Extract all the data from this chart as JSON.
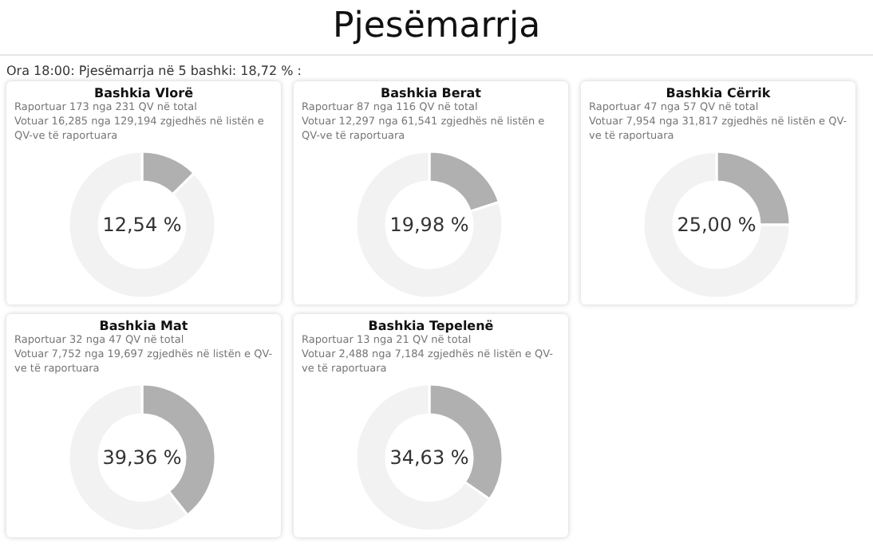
{
  "chart_data": [
    {
      "type": "other",
      "title": "Pjesëmarrja",
      "subtitle": "Ora 18:00: Pjesëmarrja në 5 bashki: 18,72 % :"
    },
    {
      "type": "donut",
      "title": "Bashkia Vlorë",
      "subtitle": "Raportuar 173 nga 231 QV në total",
      "annotations": [
        "Votuar 16,285 nga 129,194 zgjedhës në listën e QV-ve të raportuara",
        "12,54 %"
      ],
      "categories": [
        null,
        null
      ],
      "values": [
        12.54,
        87.46
      ],
      "colors": [
        "#b0b0b0",
        "#f2f2f2"
      ]
    },
    {
      "type": "donut",
      "title": "Bashkia Berat",
      "subtitle": "Raportuar 87 nga 116 QV në total",
      "annotations": [
        "Votuar 12,297 nga 61,541 zgjedhës në listën e QV-ve të raportuara",
        "19,98 %"
      ],
      "categories": [
        null,
        null
      ],
      "values": [
        19.98,
        80.02
      ],
      "colors": [
        "#b0b0b0",
        "#f2f2f2"
      ]
    },
    {
      "type": "donut",
      "title": "Bashkia Cërrik",
      "subtitle": "Raportuar 47 nga 57 QV në total",
      "annotations": [
        "Votuar 7,954 nga 31,817 zgjedhës në listën e QV-ve të raportuara",
        "25,00 %"
      ],
      "categories": [
        null,
        null
      ],
      "values": [
        25.0,
        75.0
      ],
      "colors": [
        "#b0b0b0",
        "#f2f2f2"
      ]
    },
    {
      "type": "donut",
      "title": "Bashkia Mat",
      "subtitle": "Raportuar 32 nga 47 QV në total",
      "annotations": [
        "Votuar 7,752 nga 19,697 zgjedhës në listën e QV-ve të raportuara",
        "39,36 %"
      ],
      "categories": [
        null,
        null
      ],
      "values": [
        39.36,
        60.64
      ],
      "colors": [
        "#b0b0b0",
        "#f2f2f2"
      ]
    },
    {
      "type": "donut",
      "title": "Bashkia Tepelenë",
      "subtitle": "Raportuar 13 nga 21 QV në total",
      "annotations": [
        "Votuar 2,488 nga 7,184 zgjedhës në listën e QV-ve të raportuara",
        "34,63 %"
      ],
      "categories": [
        null,
        null
      ],
      "values": [
        34.63,
        65.37
      ],
      "colors": [
        "#b0b0b0",
        "#f2f2f2"
      ]
    }
  ]
}
